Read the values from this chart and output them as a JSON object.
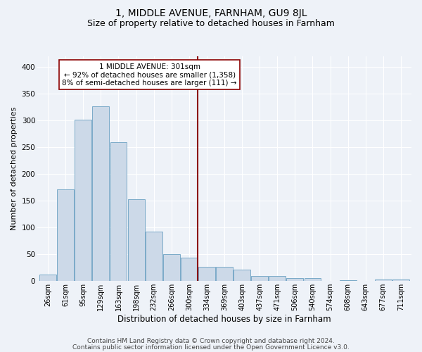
{
  "title": "1, MIDDLE AVENUE, FARNHAM, GU9 8JL",
  "subtitle": "Size of property relative to detached houses in Farnham",
  "xlabel": "Distribution of detached houses by size in Farnham",
  "ylabel": "Number of detached properties",
  "footnote1": "Contains HM Land Registry data © Crown copyright and database right 2024.",
  "footnote2": "Contains public sector information licensed under the Open Government Licence v3.0.",
  "bar_labels": [
    "26sqm",
    "61sqm",
    "95sqm",
    "129sqm",
    "163sqm",
    "198sqm",
    "232sqm",
    "266sqm",
    "300sqm",
    "334sqm",
    "369sqm",
    "403sqm",
    "437sqm",
    "471sqm",
    "506sqm",
    "540sqm",
    "574sqm",
    "608sqm",
    "643sqm",
    "677sqm",
    "711sqm"
  ],
  "bar_values": [
    12,
    172,
    301,
    327,
    259,
    153,
    93,
    50,
    44,
    27,
    27,
    21,
    10,
    10,
    5,
    5,
    0,
    2,
    0,
    3,
    3
  ],
  "bar_color": "#ccd9e8",
  "bar_edge_color": "#7aaac8",
  "vline_index": 8,
  "vline_color": "#8b0000",
  "annotation_text": "1 MIDDLE AVENUE: 301sqm\n← 92% of detached houses are smaller (1,358)\n8% of semi-detached houses are larger (111) →",
  "annotation_box_color": "#8b0000",
  "ylim": [
    0,
    420
  ],
  "yticks": [
    0,
    50,
    100,
    150,
    200,
    250,
    300,
    350,
    400
  ],
  "background_color": "#eef2f8",
  "grid_color": "#ffffff",
  "title_fontsize": 10,
  "subtitle_fontsize": 9,
  "annot_fontsize": 7.5,
  "xlabel_fontsize": 8.5,
  "ylabel_fontsize": 8,
  "tick_fontsize": 7,
  "footnote_fontsize": 6.5
}
